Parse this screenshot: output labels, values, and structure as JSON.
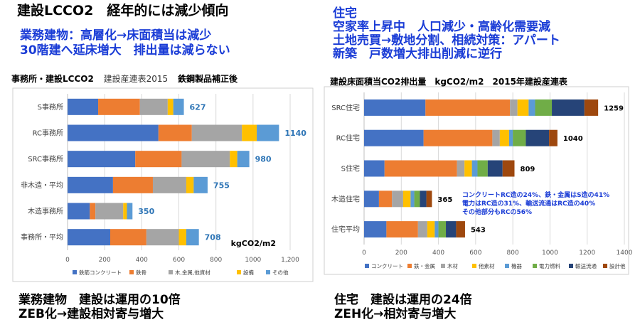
{
  "slide_title": "建設LCCO2　経年的には減少傾向",
  "left_notes": [
    "業務建物：高層化→床面積当は減少",
    "30階建へ延床増大　排出量は減らない"
  ],
  "right_notes": [
    "住宅",
    "空家率上昇中　人口減少・高齢化需要減",
    "土地売買→敷地分割、相続対策：アパート",
    "新築　戸数増大排出削減に逆行"
  ],
  "left_bottom": [
    "業務建物　建設は運用の10倍",
    "ZEB化→建設相対寄与増大"
  ],
  "right_bottom": [
    "住宅　建設は運用の24倍",
    "ZEH化→相対寄与増大"
  ],
  "chart_data": [
    {
      "type": "bar",
      "orientation": "horizontal",
      "stacked": true,
      "title": "事務所・建設LCCO2",
      "subtitle": "建設産連表2015",
      "subtitle2": "鉄鋼製品補正後",
      "unit_label": "kgCO2/m2",
      "categories": [
        "S事務所",
        "RC事務所",
        "SRC事務所",
        "非木造・平均",
        "木造事務所",
        "事務所・平均"
      ],
      "totals": [
        627,
        1140,
        980,
        755,
        350,
        708
      ],
      "xlim": [
        0,
        1200
      ],
      "xticks": [
        "0",
        "200",
        "400",
        "600",
        "800",
        "1000",
        "1,200"
      ],
      "grid": true,
      "legend": "bottom",
      "series": [
        {
          "name": "鉄筋コンクリート",
          "color": "#4472c4",
          "values": [
            165,
            490,
            365,
            245,
            120,
            230
          ]
        },
        {
          "name": "鉄骨",
          "color": "#ed7d31",
          "values": [
            225,
            180,
            250,
            215,
            30,
            195
          ]
        },
        {
          "name": "木,金属,他資材",
          "color": "#a5a5a5",
          "values": [
            150,
            270,
            260,
            180,
            150,
            175
          ]
        },
        {
          "name": "設備",
          "color": "#ffc000",
          "values": [
            30,
            80,
            40,
            40,
            20,
            40
          ]
        },
        {
          "name": "その他",
          "color": "#5b9bd5",
          "values": [
            57,
            120,
            65,
            75,
            30,
            68
          ]
        }
      ]
    },
    {
      "type": "bar",
      "orientation": "horizontal",
      "stacked": true,
      "title": "建設床面積当CO2排出量　kgCO2/m2　2015年建設産連表",
      "categories": [
        "SRC住宅",
        "RC住宅",
        "S住宅",
        "木造住宅",
        "住宅平均"
      ],
      "totals": [
        1259,
        1040,
        809,
        365,
        543
      ],
      "xlim": [
        0,
        1400
      ],
      "xticks": [
        "0",
        "200",
        "400",
        "600",
        "800",
        "1000",
        "1200",
        "1400"
      ],
      "grid": true,
      "legend": "bottom",
      "annotation": [
        "コンクリートRC造の24%、鉄・金属はS造の41%",
        "電力はRC造の31%、輸送流通はRC造の40%",
        "その他部分もRCの56%"
      ],
      "series": [
        {
          "name": "コンクリート",
          "color": "#4472c4",
          "values": [
            330,
            320,
            110,
            80,
            120
          ]
        },
        {
          "name": "鉄・金属",
          "color": "#ed7d31",
          "values": [
            455,
            370,
            390,
            70,
            170
          ]
        },
        {
          "name": "木材",
          "color": "#a5a5a5",
          "values": [
            40,
            40,
            40,
            60,
            50
          ]
        },
        {
          "name": "他素材",
          "color": "#ffc000",
          "values": [
            60,
            50,
            40,
            40,
            40
          ]
        },
        {
          "name": "機器",
          "color": "#5b9bd5",
          "values": [
            35,
            20,
            30,
            20,
            20
          ]
        },
        {
          "name": "電力燃料",
          "color": "#70ad47",
          "values": [
            90,
            70,
            55,
            30,
            40
          ]
        },
        {
          "name": "輸送流通",
          "color": "#264478",
          "values": [
            175,
            125,
            80,
            35,
            55
          ]
        },
        {
          "name": "設計他",
          "color": "#9e480e",
          "values": [
            74,
            45,
            64,
            30,
            48
          ]
        }
      ]
    }
  ]
}
